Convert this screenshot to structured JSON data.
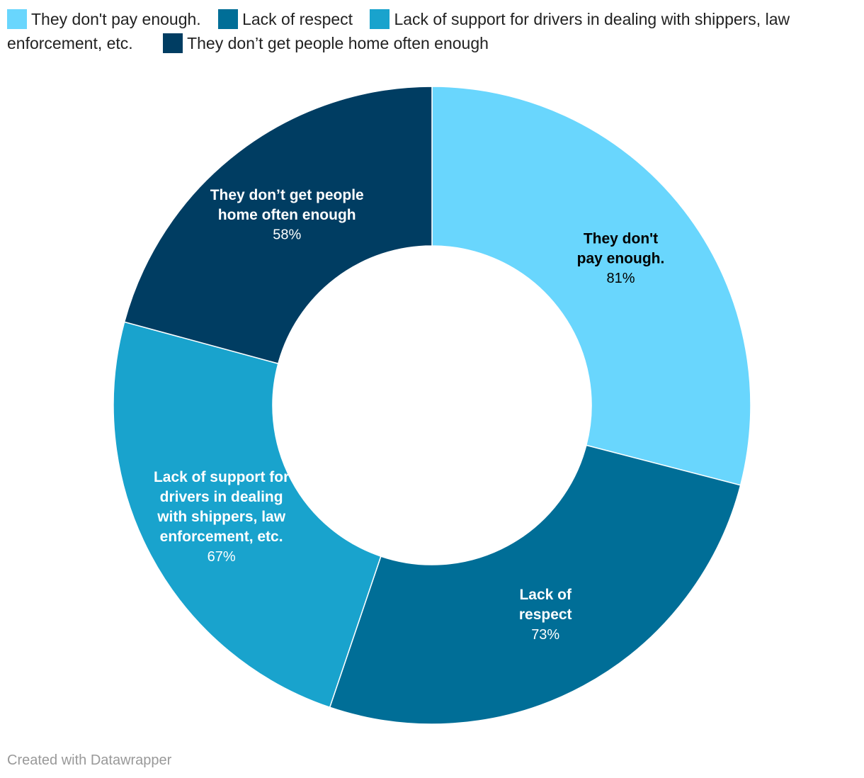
{
  "chart_data": {
    "type": "pie",
    "variant": "donut",
    "categories": [
      "They don't pay enough.",
      "Lack of respect",
      "Lack of support for drivers in dealing with shippers, law enforcement, etc.",
      "They don’t get people home often enough"
    ],
    "values": [
      81,
      73,
      67,
      58
    ],
    "value_labels": [
      "81%",
      "73%",
      "67%",
      "58%"
    ],
    "label_lines": [
      [
        "They don't",
        "pay enough."
      ],
      [
        "Lack of",
        "respect"
      ],
      [
        "Lack of support for",
        "drivers in dealing",
        "with shippers, law",
        "enforcement, etc."
      ],
      [
        "They don’t get people",
        "home often enough"
      ]
    ],
    "colors": [
      "#69d6fd",
      "#006e97",
      "#19a3cd",
      "#003d62"
    ],
    "label_colors": [
      "#000000",
      "#ffffff",
      "#ffffff",
      "#ffffff"
    ],
    "legend_position": "top-left"
  },
  "legend": {
    "items": [
      {
        "label": "They don't pay enough.",
        "color": "#69d6fd"
      },
      {
        "label": "Lack of respect",
        "color": "#006e97"
      },
      {
        "label": "Lack of support for drivers in dealing with shippers, law enforcement, etc.",
        "color": "#19a3cd"
      },
      {
        "label": "They don’t get people home often enough",
        "color": "#003d62"
      }
    ]
  },
  "footer": {
    "credit": "Created with Datawrapper"
  }
}
